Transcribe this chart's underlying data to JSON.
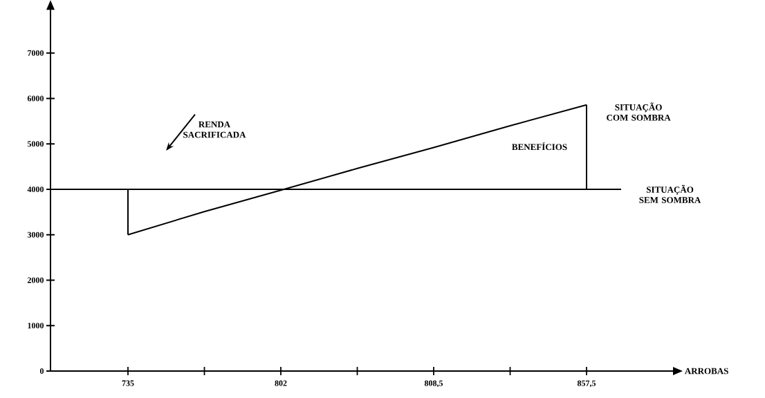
{
  "chart_data": {
    "type": "line",
    "xlabel": "ARROBAS",
    "categories": [
      "735",
      null,
      "802",
      null,
      "808,5",
      null,
      "857,5"
    ],
    "series": [
      {
        "name": "SITUAÇÃO COM SOMBRA",
        "color": "#000000",
        "values": [
          3000,
          3510,
          3980,
          4460,
          4920,
          5400,
          5860
        ]
      }
    ],
    "ylim": [
      0,
      7950
    ],
    "yticks": [
      0,
      1000,
      2000,
      3000,
      4000,
      5000,
      6000,
      7000
    ],
    "ref_lines": [
      {
        "axis": "y",
        "value": 4000,
        "label": "SITUAÇÃO SEM SOMBRA",
        "color": "#000000"
      }
    ],
    "annotations": [
      "RENDA SACRIFICADA",
      "BENEFÍCIOS"
    ]
  }
}
